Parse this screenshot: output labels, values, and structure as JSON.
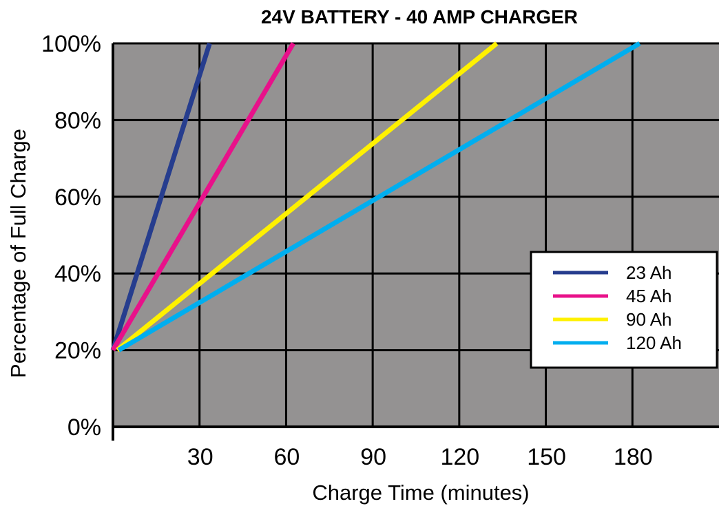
{
  "chart_data": {
    "type": "line",
    "title": "24V BATTERY - 40 AMP CHARGER",
    "xlabel": "Charge Time (minutes)",
    "ylabel": "Percentage of Full Charge",
    "x_ticks": [
      30,
      60,
      90,
      120,
      150,
      180
    ],
    "y_ticks": [
      "0%",
      "20%",
      "40%",
      "60%",
      "80%",
      "100%"
    ],
    "xlim": [
      0,
      210
    ],
    "ylim": [
      0,
      100
    ],
    "grid": true,
    "plot_background": "#949292",
    "legend_position": "right",
    "series": [
      {
        "name": "23 Ah",
        "color": "#263d8e",
        "x": [
          0,
          33.5
        ],
        "y": [
          20,
          100
        ]
      },
      {
        "name": "45 Ah",
        "color": "#e8118a",
        "x": [
          0,
          62.5
        ],
        "y": [
          20,
          100
        ]
      },
      {
        "name": "90 Ah",
        "color": "#fff100",
        "x": [
          1.5,
          133
        ],
        "y": [
          20,
          100
        ]
      },
      {
        "name": "120 Ah",
        "color": "#00aeef",
        "x": [
          2,
          182.5
        ],
        "y": [
          20,
          100
        ]
      }
    ]
  }
}
